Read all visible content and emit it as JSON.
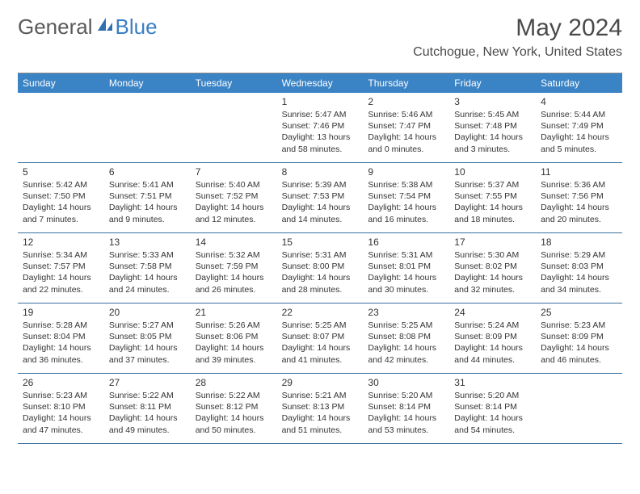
{
  "logo": {
    "general": "General",
    "blue": "Blue"
  },
  "title": "May 2024",
  "location": "Cutchogue, New York, United States",
  "colors": {
    "header_bg": "#3a83c5",
    "header_text": "#ffffff",
    "row_border": "#3a6fa0",
    "text": "#333333",
    "logo_gray": "#5a5a5a",
    "logo_blue": "#3a7fc4",
    "title_color": "#4a4a4a"
  },
  "weekdays": [
    "Sunday",
    "Monday",
    "Tuesday",
    "Wednesday",
    "Thursday",
    "Friday",
    "Saturday"
  ],
  "weeks": [
    [
      {
        "n": "",
        "sr": "",
        "ss": "",
        "dl": ""
      },
      {
        "n": "",
        "sr": "",
        "ss": "",
        "dl": ""
      },
      {
        "n": "",
        "sr": "",
        "ss": "",
        "dl": ""
      },
      {
        "n": "1",
        "sr": "Sunrise: 5:47 AM",
        "ss": "Sunset: 7:46 PM",
        "dl": "Daylight: 13 hours and 58 minutes."
      },
      {
        "n": "2",
        "sr": "Sunrise: 5:46 AM",
        "ss": "Sunset: 7:47 PM",
        "dl": "Daylight: 14 hours and 0 minutes."
      },
      {
        "n": "3",
        "sr": "Sunrise: 5:45 AM",
        "ss": "Sunset: 7:48 PM",
        "dl": "Daylight: 14 hours and 3 minutes."
      },
      {
        "n": "4",
        "sr": "Sunrise: 5:44 AM",
        "ss": "Sunset: 7:49 PM",
        "dl": "Daylight: 14 hours and 5 minutes."
      }
    ],
    [
      {
        "n": "5",
        "sr": "Sunrise: 5:42 AM",
        "ss": "Sunset: 7:50 PM",
        "dl": "Daylight: 14 hours and 7 minutes."
      },
      {
        "n": "6",
        "sr": "Sunrise: 5:41 AM",
        "ss": "Sunset: 7:51 PM",
        "dl": "Daylight: 14 hours and 9 minutes."
      },
      {
        "n": "7",
        "sr": "Sunrise: 5:40 AM",
        "ss": "Sunset: 7:52 PM",
        "dl": "Daylight: 14 hours and 12 minutes."
      },
      {
        "n": "8",
        "sr": "Sunrise: 5:39 AM",
        "ss": "Sunset: 7:53 PM",
        "dl": "Daylight: 14 hours and 14 minutes."
      },
      {
        "n": "9",
        "sr": "Sunrise: 5:38 AM",
        "ss": "Sunset: 7:54 PM",
        "dl": "Daylight: 14 hours and 16 minutes."
      },
      {
        "n": "10",
        "sr": "Sunrise: 5:37 AM",
        "ss": "Sunset: 7:55 PM",
        "dl": "Daylight: 14 hours and 18 minutes."
      },
      {
        "n": "11",
        "sr": "Sunrise: 5:36 AM",
        "ss": "Sunset: 7:56 PM",
        "dl": "Daylight: 14 hours and 20 minutes."
      }
    ],
    [
      {
        "n": "12",
        "sr": "Sunrise: 5:34 AM",
        "ss": "Sunset: 7:57 PM",
        "dl": "Daylight: 14 hours and 22 minutes."
      },
      {
        "n": "13",
        "sr": "Sunrise: 5:33 AM",
        "ss": "Sunset: 7:58 PM",
        "dl": "Daylight: 14 hours and 24 minutes."
      },
      {
        "n": "14",
        "sr": "Sunrise: 5:32 AM",
        "ss": "Sunset: 7:59 PM",
        "dl": "Daylight: 14 hours and 26 minutes."
      },
      {
        "n": "15",
        "sr": "Sunrise: 5:31 AM",
        "ss": "Sunset: 8:00 PM",
        "dl": "Daylight: 14 hours and 28 minutes."
      },
      {
        "n": "16",
        "sr": "Sunrise: 5:31 AM",
        "ss": "Sunset: 8:01 PM",
        "dl": "Daylight: 14 hours and 30 minutes."
      },
      {
        "n": "17",
        "sr": "Sunrise: 5:30 AM",
        "ss": "Sunset: 8:02 PM",
        "dl": "Daylight: 14 hours and 32 minutes."
      },
      {
        "n": "18",
        "sr": "Sunrise: 5:29 AM",
        "ss": "Sunset: 8:03 PM",
        "dl": "Daylight: 14 hours and 34 minutes."
      }
    ],
    [
      {
        "n": "19",
        "sr": "Sunrise: 5:28 AM",
        "ss": "Sunset: 8:04 PM",
        "dl": "Daylight: 14 hours and 36 minutes."
      },
      {
        "n": "20",
        "sr": "Sunrise: 5:27 AM",
        "ss": "Sunset: 8:05 PM",
        "dl": "Daylight: 14 hours and 37 minutes."
      },
      {
        "n": "21",
        "sr": "Sunrise: 5:26 AM",
        "ss": "Sunset: 8:06 PM",
        "dl": "Daylight: 14 hours and 39 minutes."
      },
      {
        "n": "22",
        "sr": "Sunrise: 5:25 AM",
        "ss": "Sunset: 8:07 PM",
        "dl": "Daylight: 14 hours and 41 minutes."
      },
      {
        "n": "23",
        "sr": "Sunrise: 5:25 AM",
        "ss": "Sunset: 8:08 PM",
        "dl": "Daylight: 14 hours and 42 minutes."
      },
      {
        "n": "24",
        "sr": "Sunrise: 5:24 AM",
        "ss": "Sunset: 8:09 PM",
        "dl": "Daylight: 14 hours and 44 minutes."
      },
      {
        "n": "25",
        "sr": "Sunrise: 5:23 AM",
        "ss": "Sunset: 8:09 PM",
        "dl": "Daylight: 14 hours and 46 minutes."
      }
    ],
    [
      {
        "n": "26",
        "sr": "Sunrise: 5:23 AM",
        "ss": "Sunset: 8:10 PM",
        "dl": "Daylight: 14 hours and 47 minutes."
      },
      {
        "n": "27",
        "sr": "Sunrise: 5:22 AM",
        "ss": "Sunset: 8:11 PM",
        "dl": "Daylight: 14 hours and 49 minutes."
      },
      {
        "n": "28",
        "sr": "Sunrise: 5:22 AM",
        "ss": "Sunset: 8:12 PM",
        "dl": "Daylight: 14 hours and 50 minutes."
      },
      {
        "n": "29",
        "sr": "Sunrise: 5:21 AM",
        "ss": "Sunset: 8:13 PM",
        "dl": "Daylight: 14 hours and 51 minutes."
      },
      {
        "n": "30",
        "sr": "Sunrise: 5:20 AM",
        "ss": "Sunset: 8:14 PM",
        "dl": "Daylight: 14 hours and 53 minutes."
      },
      {
        "n": "31",
        "sr": "Sunrise: 5:20 AM",
        "ss": "Sunset: 8:14 PM",
        "dl": "Daylight: 14 hours and 54 minutes."
      },
      {
        "n": "",
        "sr": "",
        "ss": "",
        "dl": ""
      }
    ]
  ]
}
